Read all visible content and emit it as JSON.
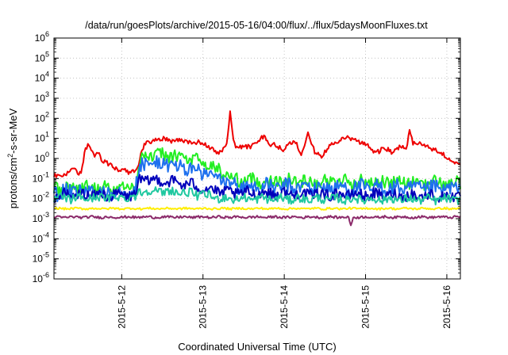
{
  "chart_data": {
    "type": "line",
    "title": "/data/run/goesPlots/archive/2015-05-16/04:00/flux/../flux/5daysMoonFluxes.txt",
    "xlabel": "Coordinated Universal Time (UTC)",
    "ylabel": {
      "base": "protons/cm",
      "sup": "2",
      "rest": "-s-sr-MeV"
    },
    "y_scale": "log",
    "ylim": [
      1e-06,
      1000000.0
    ],
    "y_ticks": [
      {
        "value": 1e-06,
        "base": "10",
        "exp": "-6"
      },
      {
        "value": 1e-05,
        "base": "10",
        "exp": "-5"
      },
      {
        "value": 0.0001,
        "base": "10",
        "exp": "-4"
      },
      {
        "value": 0.001,
        "base": "10",
        "exp": "-3"
      },
      {
        "value": 0.01,
        "base": "10",
        "exp": "-2"
      },
      {
        "value": 0.1,
        "base": "10",
        "exp": "-1"
      },
      {
        "value": 1,
        "base": "10",
        "exp": "0"
      },
      {
        "value": 10,
        "base": "10",
        "exp": "1"
      },
      {
        "value": 100,
        "base": "10",
        "exp": "2"
      },
      {
        "value": 1000,
        "base": "10",
        "exp": "3"
      },
      {
        "value": 10000,
        "base": "10",
        "exp": "4"
      },
      {
        "value": 100000,
        "base": "10",
        "exp": "5"
      },
      {
        "value": 1000000,
        "base": "10",
        "exp": "6"
      }
    ],
    "xlim": [
      "2015-05-11 04:00",
      "2015-05-16 04:00"
    ],
    "x_ticks": [
      {
        "label": "2015-5-12",
        "value": "2015-05-12 00:00"
      },
      {
        "label": "2015-5-13",
        "value": "2015-05-13 00:00"
      },
      {
        "label": "2015-5-14",
        "value": "2015-05-14 00:00"
      },
      {
        "label": "2015-5-15",
        "value": "2015-05-15 00:00"
      },
      {
        "label": "2015-5-16",
        "value": "2015-05-16 00:00"
      }
    ],
    "grid": "dotted",
    "legend": "none",
    "series": [
      {
        "color": "#ee0000",
        "noise": 0.12,
        "points": [
          [
            "2015-05-11 04:00",
            0.12
          ],
          [
            "2015-05-11 06:00",
            0.15
          ],
          [
            "2015-05-11 08:00",
            0.2
          ],
          [
            "2015-05-11 10:00",
            0.3
          ],
          [
            "2015-05-11 11:00",
            0.18
          ],
          [
            "2015-05-11 12:00",
            0.2
          ],
          [
            "2015-05-11 13:00",
            2.0
          ],
          [
            "2015-05-11 14:00",
            5.0
          ],
          [
            "2015-05-11 15:00",
            3.0
          ],
          [
            "2015-05-11 16:00",
            1.0
          ],
          [
            "2015-05-11 17:00",
            2.5
          ],
          [
            "2015-05-11 18:00",
            0.8
          ],
          [
            "2015-05-11 20:00",
            0.5
          ],
          [
            "2015-05-11 23:00",
            0.3
          ],
          [
            "2015-05-12 02:00",
            0.2
          ],
          [
            "2015-05-12 04:00",
            0.25
          ],
          [
            "2015-05-12 05:00",
            0.5
          ],
          [
            "2015-05-12 06:00",
            3.0
          ],
          [
            "2015-05-12 07:00",
            5.0
          ],
          [
            "2015-05-12 09:00",
            8.0
          ],
          [
            "2015-05-12 12:00",
            9.0
          ],
          [
            "2015-05-12 16:00",
            8.0
          ],
          [
            "2015-05-12 20:00",
            7.0
          ],
          [
            "2015-05-13 00:00",
            6.0
          ],
          [
            "2015-05-13 03:00",
            3.0
          ],
          [
            "2015-05-13 04:00",
            1.5
          ],
          [
            "2015-05-13 06:00",
            3.0
          ],
          [
            "2015-05-13 07:00",
            5.0
          ],
          [
            "2015-05-13 08:00",
            200.0
          ],
          [
            "2015-05-13 09:00",
            8.0
          ],
          [
            "2015-05-13 10:00",
            3.0
          ],
          [
            "2015-05-13 12:00",
            4.0
          ],
          [
            "2015-05-13 14:00",
            4.0
          ],
          [
            "2015-05-13 16:00",
            7.0
          ],
          [
            "2015-05-13 18:00",
            15.0
          ],
          [
            "2015-05-13 20:00",
            5.0
          ],
          [
            "2015-05-14 00:00",
            3.0
          ],
          [
            "2015-05-14 03:00",
            8.0
          ],
          [
            "2015-05-14 05:00",
            2.0
          ],
          [
            "2015-05-14 07:00",
            15.0
          ],
          [
            "2015-05-14 09:00",
            2.0
          ],
          [
            "2015-05-14 11:00",
            1.5
          ],
          [
            "2015-05-14 13:00",
            3.0
          ],
          [
            "2015-05-14 15:00",
            7.0
          ],
          [
            "2015-05-14 17:00",
            9.0
          ],
          [
            "2015-05-14 19:00",
            10.0
          ],
          [
            "2015-05-14 21:00",
            8.0
          ],
          [
            "2015-05-14 23:00",
            6.0
          ],
          [
            "2015-05-15 00:00",
            5.0
          ],
          [
            "2015-05-15 03:00",
            2.0
          ],
          [
            "2015-05-15 06:00",
            3.0
          ],
          [
            "2015-05-15 08:00",
            2.0
          ],
          [
            "2015-05-15 10:00",
            4.0
          ],
          [
            "2015-05-15 12:00",
            3.0
          ],
          [
            "2015-05-15 13:00",
            25.0
          ],
          [
            "2015-05-15 14:00",
            6.0
          ],
          [
            "2015-05-15 17:00",
            5.0
          ],
          [
            "2015-05-15 20:00",
            3.0
          ],
          [
            "2015-05-15 23:00",
            1.5
          ],
          [
            "2015-05-16 01:00",
            0.8
          ],
          [
            "2015-05-16 03:00",
            0.6
          ],
          [
            "2015-05-16 04:00",
            0.45
          ]
        ]
      },
      {
        "color": "#22ee22",
        "noise": 0.32,
        "points": [
          [
            "2015-05-11 04:00",
            0.035
          ],
          [
            "2015-05-12 04:00",
            0.035
          ],
          [
            "2015-05-12 05:00",
            0.5
          ],
          [
            "2015-05-12 06:00",
            1.2
          ],
          [
            "2015-05-12 09:00",
            1.5
          ],
          [
            "2015-05-12 14:00",
            1.4
          ],
          [
            "2015-05-12 20:00",
            1.0
          ],
          [
            "2015-05-13 00:00",
            0.6
          ],
          [
            "2015-05-13 06:00",
            0.2
          ],
          [
            "2015-05-13 10:00",
            0.08
          ],
          [
            "2015-05-16 04:00",
            0.06
          ]
        ]
      },
      {
        "color": "#1e70ee",
        "noise": 0.38,
        "points": [
          [
            "2015-05-11 04:00",
            0.02
          ],
          [
            "2015-05-12 04:00",
            0.025
          ],
          [
            "2015-05-12 05:00",
            0.2
          ],
          [
            "2015-05-12 06:00",
            0.5
          ],
          [
            "2015-05-12 09:00",
            0.6
          ],
          [
            "2015-05-12 14:00",
            0.5
          ],
          [
            "2015-05-12 20:00",
            0.3
          ],
          [
            "2015-05-13 00:00",
            0.2
          ],
          [
            "2015-05-13 06:00",
            0.08
          ],
          [
            "2015-05-13 10:00",
            0.04
          ],
          [
            "2015-05-16 04:00",
            0.03
          ]
        ]
      },
      {
        "color": "#0000bb",
        "noise": 0.28,
        "points": [
          [
            "2015-05-11 04:00",
            0.015
          ],
          [
            "2015-05-12 04:00",
            0.015
          ],
          [
            "2015-05-12 05:00",
            0.07
          ],
          [
            "2015-05-12 06:00",
            0.085
          ],
          [
            "2015-05-12 12:00",
            0.08
          ],
          [
            "2015-05-12 20:00",
            0.05
          ],
          [
            "2015-05-13 00:00",
            0.035
          ],
          [
            "2015-05-13 06:00",
            0.02
          ],
          [
            "2015-05-16 04:00",
            0.013
          ]
        ]
      },
      {
        "color": "#20c8a0",
        "noise": 0.22,
        "points": [
          [
            "2015-05-11 04:00",
            0.01
          ],
          [
            "2015-05-12 04:00",
            0.012
          ],
          [
            "2015-05-12 05:00",
            0.02
          ],
          [
            "2015-05-12 06:00",
            0.025
          ],
          [
            "2015-05-12 16:00",
            0.022
          ],
          [
            "2015-05-13 00:00",
            0.015
          ],
          [
            "2015-05-13 06:00",
            0.01
          ],
          [
            "2015-05-16 04:00",
            0.009
          ]
        ]
      },
      {
        "color": "#ffee00",
        "noise": 0.05,
        "points": [
          [
            "2015-05-11 04:00",
            0.0032
          ],
          [
            "2015-05-16 04:00",
            0.0032
          ]
        ]
      },
      {
        "color": "#8b2a6a",
        "noise": 0.06,
        "points": [
          [
            "2015-05-11 04:00",
            0.0012
          ],
          [
            "2015-05-14 19:00",
            0.0012
          ],
          [
            "2015-05-14 19:40",
            0.0004
          ],
          [
            "2015-05-14 20:20",
            0.0012
          ],
          [
            "2015-05-16 04:00",
            0.0012
          ]
        ]
      }
    ]
  }
}
